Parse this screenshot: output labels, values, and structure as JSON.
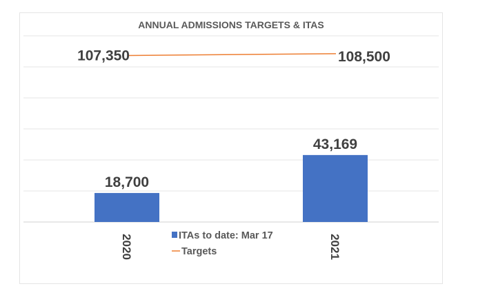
{
  "chart_data": {
    "type": "bar",
    "title": "ANNUAL ADMISSIONS TARGETS & ITAS",
    "categories": [
      "2020",
      "2021"
    ],
    "series": [
      {
        "name": "ITAs to date: Mar 17",
        "type": "bar",
        "values": [
          18700,
          43169
        ],
        "labels": [
          "18,700",
          "43,169"
        ],
        "color": "#4472C4"
      },
      {
        "name": "Targets",
        "type": "line",
        "values": [
          107350,
          108500
        ],
        "labels": [
          "107,350",
          "108,500"
        ],
        "color": "#ED7D31"
      }
    ],
    "ylim": [
      0,
      120000
    ],
    "grid": true,
    "legend_position": "bottom-center",
    "xlabel": "",
    "ylabel": ""
  }
}
